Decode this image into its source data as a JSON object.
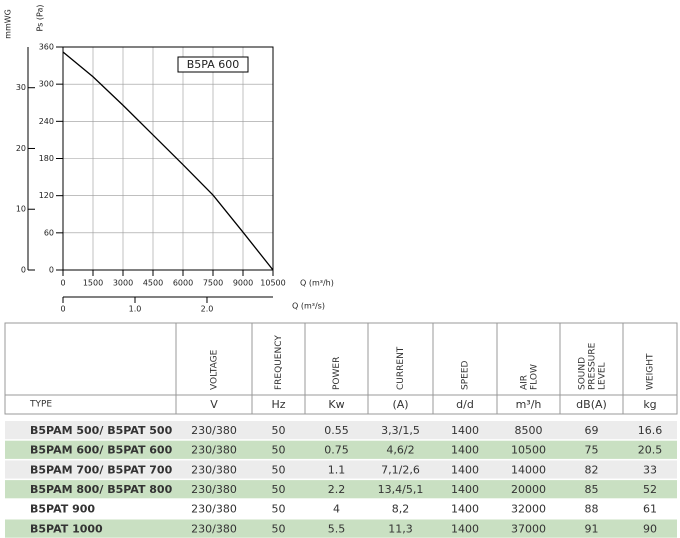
{
  "chart_data": {
    "type": "line",
    "box_label": "B5PA 600",
    "ylabel": "Ps (Pa)",
    "y2label": "mmWG",
    "xlabel": "Q (m³/h)",
    "x2label": "Q (m³/s)",
    "x": [
      0,
      1500,
      3000,
      4500,
      6000,
      7500,
      9000,
      10500
    ],
    "series": [
      {
        "color": "#000000",
        "values": [
          352,
          312,
          266,
          218,
          170,
          121,
          61,
          0
        ]
      }
    ],
    "xlim": [
      0,
      10500
    ],
    "xticks": [
      0,
      1500,
      3000,
      4500,
      6000,
      7500,
      9000,
      10500
    ],
    "ylim": [
      0,
      360
    ],
    "yticks": [
      0,
      60,
      120,
      180,
      240,
      300,
      360
    ],
    "y2lim": [
      0,
      36.7
    ],
    "y2ticks": [
      0,
      10,
      20,
      30
    ],
    "x2lim": [
      0,
      2.917
    ],
    "x2ticks": [
      0,
      {
        "value": 1,
        "label": "1.0"
      },
      {
        "value": 2,
        "label": "2.0"
      }
    ],
    "grid": true
  },
  "table": {
    "type_header": "TYPE",
    "columns": [
      {
        "name": "VOLTAGE",
        "unit": "V"
      },
      {
        "name": "FREQUENCY",
        "unit": "Hz"
      },
      {
        "name": "POWER",
        "unit": "Kw"
      },
      {
        "name": "CURRENT",
        "unit": "(A)"
      },
      {
        "name": "SPEED",
        "unit": "d/d"
      },
      {
        "name": "AIR FLOW",
        "unit": "m³/h"
      },
      {
        "name": "SOUND PRESSURE LEVEL",
        "unit": "dB(A)"
      },
      {
        "name": "WEIGHT",
        "unit": "kg"
      }
    ],
    "rows": [
      [
        "B5PAM 500/ B5PAT 500",
        "230/380",
        "50",
        "0.55",
        "3,3/1,5",
        "1400",
        "8500",
        "69",
        "16.6"
      ],
      [
        "B5PAM 600/ B5PAT 600",
        "230/380",
        "50",
        "0.75",
        "4,6/2",
        "1400",
        "10500",
        "75",
        "20.5"
      ],
      [
        "B5PAM 700/ B5PAT 700",
        "230/380",
        "50",
        "1.1",
        "7,1/2,6",
        "1400",
        "14000",
        "82",
        "33"
      ],
      [
        "B5PAM 800/ B5PAT 800",
        "230/380",
        "50",
        "2.2",
        "13,4/5,1",
        "1400",
        "20000",
        "85",
        "52"
      ],
      [
        "B5PAT 900",
        "230/380",
        "50",
        "4",
        "8,2",
        "1400",
        "32000",
        "88",
        "61"
      ],
      [
        "B5PAT 1000",
        "230/380",
        "50",
        "5.5",
        "11,3",
        "1400",
        "37000",
        "91",
        "90"
      ]
    ]
  }
}
